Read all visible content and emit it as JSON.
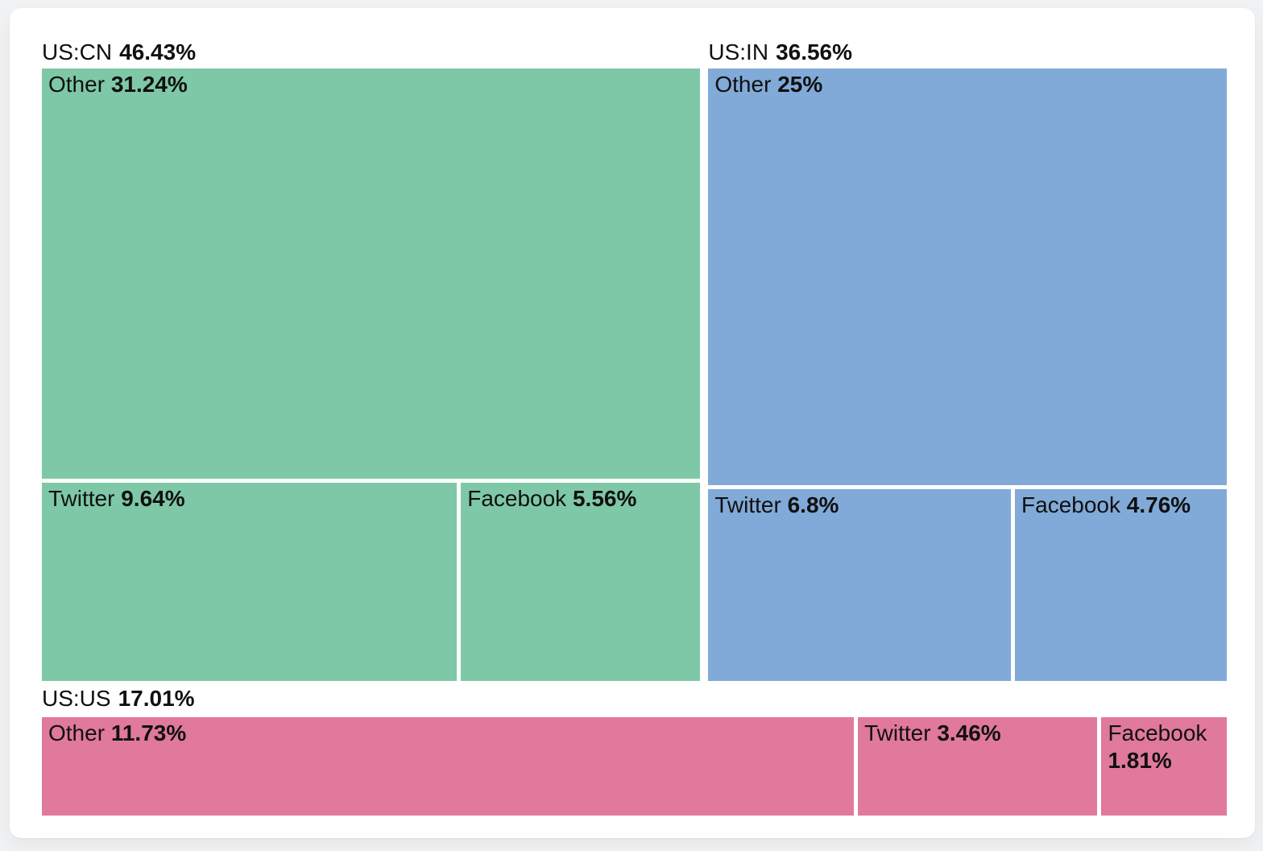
{
  "chart_data": {
    "type": "treemap",
    "title": "",
    "unit": "%",
    "legend_position": "none",
    "text_color": "#101010",
    "background_color": "#ffffff",
    "page_background_color": "#f1f2f4",
    "groups": [
      {
        "name": "US:CN",
        "value": 46.43,
        "label": "46.43%",
        "color": "#7ec8a7",
        "children_layout": "first-top-rest-bottom",
        "children": [
          {
            "name": "Other",
            "value": 31.24,
            "label": "31.24%"
          },
          {
            "name": "Twitter",
            "value": 9.64,
            "label": "9.64%"
          },
          {
            "name": "Facebook",
            "value": 5.56,
            "label": "5.56%"
          }
        ]
      },
      {
        "name": "US:IN",
        "value": 36.56,
        "label": "36.56%",
        "color": "#81aad8",
        "children_layout": "first-top-rest-bottom",
        "children": [
          {
            "name": "Other",
            "value": 25,
            "label": "25%"
          },
          {
            "name": "Twitter",
            "value": 6.8,
            "label": "6.8%"
          },
          {
            "name": "Facebook",
            "value": 4.76,
            "label": "4.76%"
          }
        ]
      },
      {
        "name": "US:US",
        "value": 17.01,
        "label": "17.01%",
        "color": "#e0799c",
        "children_layout": "row",
        "children": [
          {
            "name": "Other",
            "value": 11.73,
            "label": "11.73%"
          },
          {
            "name": "Twitter",
            "value": 3.46,
            "label": "3.46%"
          },
          {
            "name": "Facebook",
            "value": 1.81,
            "label": "1.81%"
          }
        ]
      }
    ],
    "layout_rows": [
      [
        0,
        1
      ],
      [
        2
      ]
    ]
  }
}
